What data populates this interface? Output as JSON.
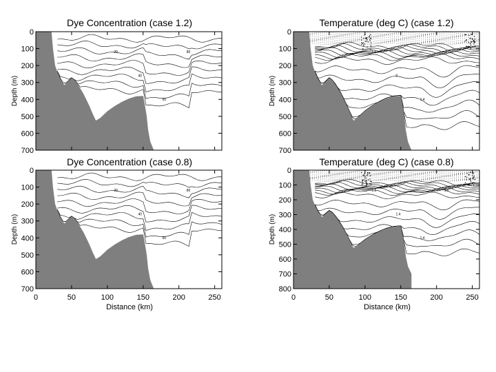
{
  "chart_data": [
    {
      "type": "contour",
      "title": "Dye Concentration (case 1.2)",
      "xlabel": "",
      "ylabel": "Depth (m)",
      "xlim": [
        0,
        260
      ],
      "ylim": [
        700,
        0
      ],
      "yticks": [
        0,
        100,
        200,
        300,
        400,
        500,
        600,
        700
      ],
      "xticks": [],
      "contour_labels": [
        "20",
        "40",
        "60",
        "80"
      ],
      "bathymetry": {
        "x": [
          0,
          22,
          24,
          27,
          32,
          37,
          40,
          45,
          50,
          55,
          60,
          67,
          75,
          80,
          84,
          90,
          100,
          110,
          120,
          130,
          140,
          147,
          150,
          152,
          155,
          157,
          160,
          165
        ],
        "depth": [
          0,
          0,
          100,
          200,
          260,
          300,
          315,
          295,
          275,
          290,
          320,
          370,
          440,
          490,
          525,
          510,
          470,
          440,
          415,
          395,
          382,
          380,
          380,
          420,
          500,
          580,
          650,
          700
        ]
      }
    },
    {
      "type": "contour",
      "title": "Temperature (deg C) (case 1.2)",
      "xlabel": "",
      "ylabel": "Depth (m)",
      "xlim": [
        0,
        260
      ],
      "ylim": [
        700,
        0
      ],
      "yticks": [
        0,
        100,
        200,
        300,
        400,
        500,
        600,
        700
      ],
      "xticks": [],
      "contour_labels": [
        "1.6",
        "0",
        "1.4",
        "-1"
      ],
      "bathymetry": {
        "x": [
          0,
          22,
          24,
          27,
          32,
          37,
          40,
          45,
          50,
          55,
          60,
          67,
          75,
          80,
          84,
          90,
          100,
          110,
          120,
          130,
          140,
          147,
          150,
          152,
          155,
          157,
          160,
          165
        ],
        "depth": [
          0,
          0,
          100,
          200,
          260,
          300,
          315,
          295,
          275,
          290,
          320,
          370,
          440,
          490,
          525,
          510,
          470,
          440,
          415,
          395,
          382,
          380,
          380,
          420,
          500,
          580,
          650,
          700
        ]
      }
    },
    {
      "type": "contour",
      "title": "Dye Concentration (case 0.8)",
      "xlabel": "Distance (km)",
      "ylabel": "Depth (m)",
      "xlim": [
        0,
        260
      ],
      "ylim": [
        700,
        0
      ],
      "yticks": [
        0,
        100,
        200,
        300,
        400,
        500,
        600,
        700
      ],
      "xticks": [
        0,
        50,
        100,
        150,
        200,
        250
      ],
      "contour_labels": [
        "20",
        "40",
        "60",
        "80"
      ],
      "bathymetry": {
        "x": [
          0,
          22,
          24,
          27,
          32,
          37,
          40,
          45,
          50,
          55,
          60,
          67,
          75,
          80,
          84,
          90,
          100,
          110,
          120,
          130,
          140,
          147,
          150,
          152,
          155,
          157,
          160,
          165
        ],
        "depth": [
          0,
          0,
          100,
          200,
          260,
          300,
          315,
          295,
          275,
          290,
          320,
          370,
          440,
          490,
          525,
          510,
          470,
          440,
          415,
          395,
          382,
          380,
          380,
          420,
          500,
          580,
          650,
          700
        ]
      }
    },
    {
      "type": "contour",
      "title": "Temperature (deg C) (case 0.8)",
      "xlabel": "Distance (km)",
      "ylabel": "Depth (m)",
      "xlim": [
        0,
        260
      ],
      "ylim": [
        800,
        0
      ],
      "yticks": [
        0,
        100,
        200,
        300,
        400,
        500,
        600,
        700,
        800
      ],
      "xticks": [
        0,
        50,
        100,
        150,
        200,
        250
      ],
      "contour_labels": [
        "1.6",
        "1.4",
        "1.4",
        "1.6"
      ],
      "bathymetry": {
        "x": [
          0,
          22,
          24,
          27,
          32,
          37,
          40,
          45,
          50,
          55,
          60,
          67,
          75,
          80,
          84,
          90,
          100,
          110,
          120,
          130,
          140,
          147,
          150,
          152,
          155,
          157,
          160,
          165
        ],
        "depth": [
          0,
          0,
          100,
          200,
          260,
          300,
          315,
          295,
          275,
          290,
          320,
          370,
          440,
          490,
          525,
          510,
          470,
          440,
          415,
          395,
          382,
          380,
          380,
          420,
          500,
          580,
          650,
          700
        ]
      }
    }
  ]
}
